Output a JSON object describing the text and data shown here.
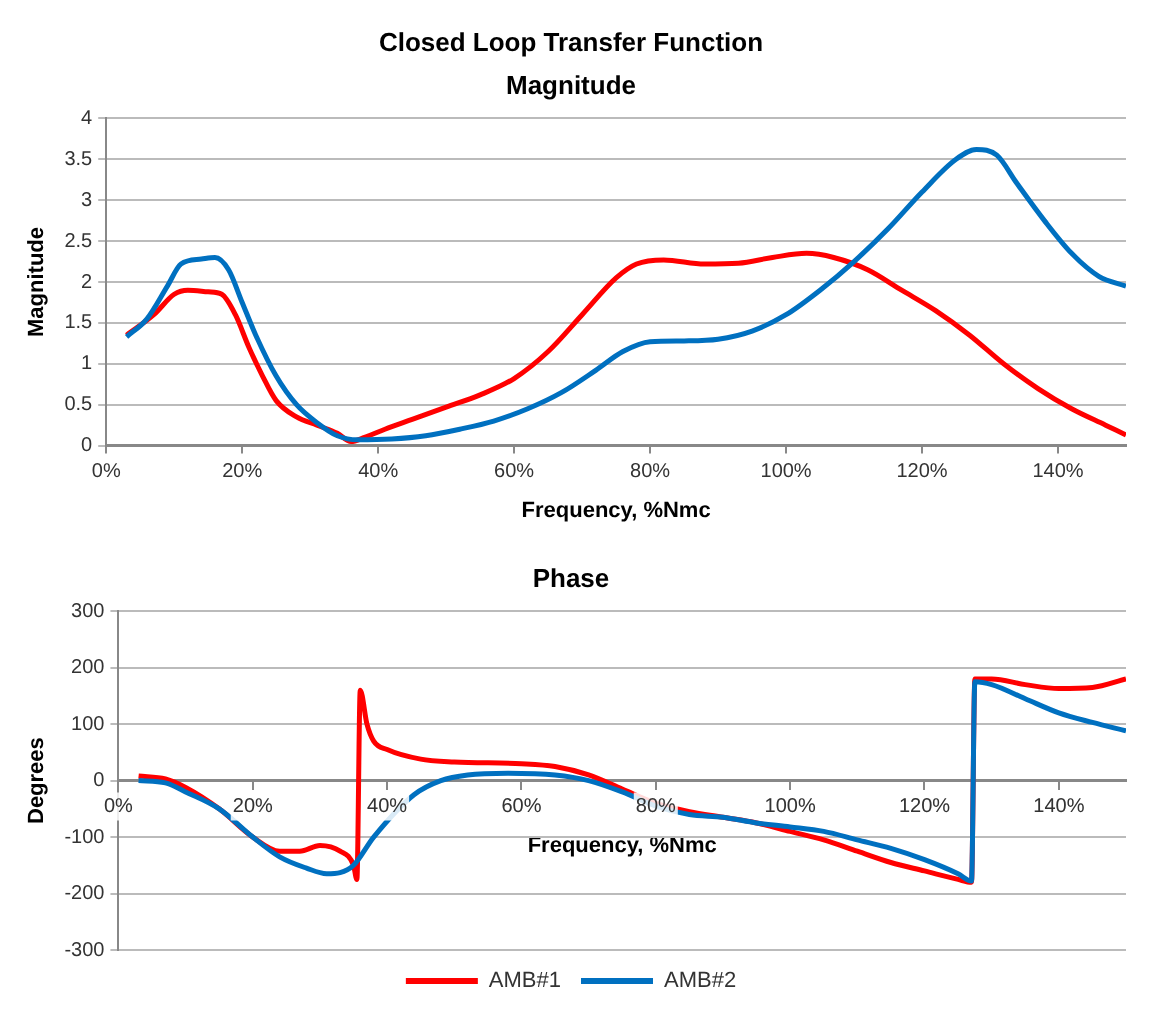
{
  "chart_data": [
    {
      "type": "line",
      "title": "Closed Loop Transfer Function",
      "subtitle": "Magnitude",
      "xlabel": "Frequency, %Nmc",
      "ylabel": "Magnitude",
      "xlim": [
        0,
        150
      ],
      "xticks": [
        {
          "value": 0,
          "label": "0%"
        },
        {
          "value": 20,
          "label": "20%"
        },
        {
          "value": 40,
          "label": "40%"
        },
        {
          "value": 60,
          "label": "60%"
        },
        {
          "value": 80,
          "label": "80%"
        },
        {
          "value": 100,
          "label": "100%"
        },
        {
          "value": 120,
          "label": "120%"
        },
        {
          "value": 140,
          "label": "140%"
        }
      ],
      "ylim": [
        0,
        4
      ],
      "yticks": [
        0,
        0.5,
        1,
        1.5,
        2,
        2.5,
        3,
        3.5,
        4
      ],
      "grid": "y",
      "legend": false,
      "marker": "none",
      "line_style": "solid",
      "series": [
        {
          "color": "#ff0000",
          "x": [
            3,
            7,
            10,
            12,
            15,
            17,
            19,
            21,
            23,
            25,
            28,
            31,
            34,
            36,
            38,
            41,
            45,
            50,
            55,
            60,
            65,
            70,
            75,
            78,
            82,
            88,
            93,
            98,
            103,
            107,
            112,
            117,
            122,
            127,
            132,
            137,
            142,
            147,
            150
          ],
          "values": [
            1.35,
            1.6,
            1.85,
            1.9,
            1.88,
            1.85,
            1.6,
            1.2,
            0.85,
            0.55,
            0.35,
            0.25,
            0.15,
            0.05,
            0.1,
            0.2,
            0.32,
            0.47,
            0.62,
            0.82,
            1.15,
            1.6,
            2.05,
            2.22,
            2.27,
            2.22,
            2.23,
            2.3,
            2.35,
            2.3,
            2.15,
            1.9,
            1.65,
            1.35,
            1.0,
            0.7,
            0.45,
            0.25,
            0.13
          ]
        },
        {
          "color": "#0070c0",
          "x": [
            3,
            6,
            9,
            11,
            14,
            16,
            18,
            20,
            22,
            25,
            28,
            31,
            34,
            37,
            42,
            47,
            52,
            57,
            62,
            67,
            72,
            76,
            80,
            85,
            90,
            95,
            100,
            105,
            110,
            115,
            120,
            125,
            128,
            131,
            134,
            138,
            142,
            146,
            150
          ],
          "values": [
            1.33,
            1.55,
            1.95,
            2.22,
            2.28,
            2.3,
            2.15,
            1.75,
            1.35,
            0.85,
            0.5,
            0.28,
            0.12,
            0.07,
            0.08,
            0.12,
            0.2,
            0.3,
            0.45,
            0.65,
            0.92,
            1.15,
            1.27,
            1.28,
            1.3,
            1.4,
            1.6,
            1.9,
            2.25,
            2.65,
            3.1,
            3.5,
            3.62,
            3.55,
            3.2,
            2.75,
            2.35,
            2.07,
            1.95
          ]
        }
      ]
    },
    {
      "type": "line",
      "title": "Phase",
      "xlabel": "Frequency, %Nmc",
      "ylabel": "Degrees",
      "xlim": [
        0,
        150
      ],
      "xticks": [
        {
          "value": 0,
          "label": "0%"
        },
        {
          "value": 20,
          "label": "20%"
        },
        {
          "value": 40,
          "label": "40%"
        },
        {
          "value": 60,
          "label": "60%"
        },
        {
          "value": 80,
          "label": "80%"
        },
        {
          "value": 100,
          "label": "100%"
        },
        {
          "value": 120,
          "label": "120%"
        },
        {
          "value": 140,
          "label": "140%"
        }
      ],
      "ylim": [
        -300,
        300
      ],
      "yticks": [
        -300,
        -200,
        -100,
        0,
        100,
        200,
        300
      ],
      "grid": "y",
      "legend": "bottom",
      "marker": "none",
      "line_style": "solid",
      "series": [
        {
          "name": "AMB#1",
          "color": "#ff0000",
          "x": [
            3,
            7,
            10,
            15,
            20,
            24,
            27,
            30,
            33,
            35,
            35.5,
            36,
            37,
            38,
            40,
            45,
            50,
            60,
            65,
            70,
            75,
            80,
            85,
            90,
            95,
            100,
            105,
            110,
            115,
            120,
            125,
            127,
            127.5,
            130,
            135,
            140,
            145,
            150
          ],
          "values": [
            8,
            3,
            -12,
            -50,
            -100,
            -125,
            -125,
            -115,
            -125,
            -150,
            -175,
            160,
            100,
            70,
            55,
            38,
            33,
            30,
            25,
            10,
            -15,
            -40,
            -55,
            -65,
            -75,
            -90,
            -105,
            -125,
            -145,
            -160,
            -175,
            -180,
            180,
            180,
            170,
            163,
            165,
            180
          ]
        },
        {
          "name": "AMB#2",
          "color": "#0070c0",
          "x": [
            3,
            7,
            10,
            15,
            20,
            24,
            28,
            31,
            33,
            35,
            38,
            44,
            48,
            52,
            58,
            65,
            70,
            75,
            80,
            85,
            90,
            95,
            100,
            105,
            110,
            115,
            120,
            125,
            127,
            127.5,
            130,
            135,
            140,
            145,
            150
          ],
          "values": [
            0,
            -4,
            -20,
            -50,
            -100,
            -135,
            -155,
            -165,
            -163,
            -150,
            -100,
            -25,
            0,
            10,
            13,
            10,
            0,
            -20,
            -45,
            -60,
            -65,
            -75,
            -82,
            -90,
            -105,
            -120,
            -140,
            -165,
            -178,
            175,
            170,
            145,
            120,
            103,
            88
          ]
        }
      ]
    }
  ]
}
